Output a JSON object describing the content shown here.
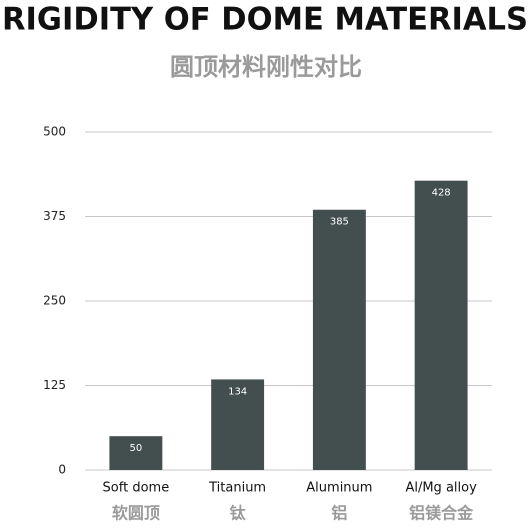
{
  "chart_data": {
    "type": "bar",
    "title": "RIGIDITY OF DOME MATERIALS",
    "subtitle": "圆顶材料刚性对比",
    "categories": [
      "Soft dome",
      "Titanium",
      "Aluminum",
      "Al/Mg alloy"
    ],
    "categories_zh": [
      "软圆顶",
      "钛",
      "铝",
      "铝镁合金"
    ],
    "values": [
      50,
      134,
      385,
      428
    ],
    "color": "#434e4e",
    "ylim": [
      0,
      500
    ],
    "yticks": [
      0,
      125,
      250,
      375,
      500
    ],
    "grid": true
  }
}
